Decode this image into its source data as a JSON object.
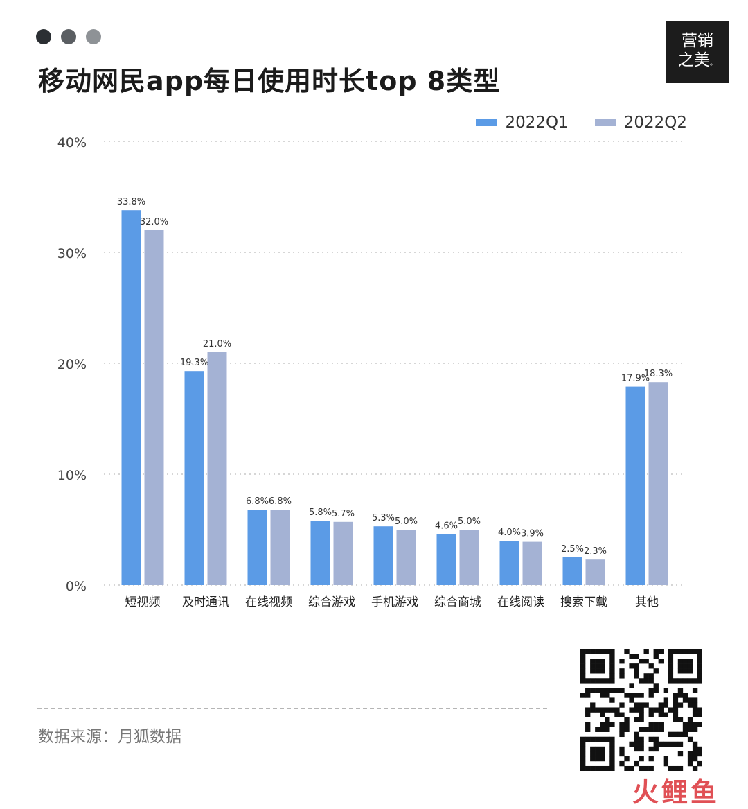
{
  "header": {
    "title": "移动网民app每日使用时长top 8类型",
    "window_dots": [
      "#2b2f33",
      "#5a5e62",
      "#8e9296"
    ]
  },
  "logo": {
    "line1": "营销",
    "line2": "之美",
    "mark": "。"
  },
  "legend": {
    "q1_label": "2022Q1",
    "q2_label": "2022Q2"
  },
  "colors": {
    "q1": "#5b9be6",
    "q2": "#a4b2d4",
    "grid": "#c8c8c8",
    "text": "#333333"
  },
  "chart_data": {
    "type": "bar",
    "categories": [
      "短视频",
      "及时通讯",
      "在线视频",
      "综合游戏",
      "手机游戏",
      "综合商城",
      "在线阅读",
      "搜索下载",
      "其他"
    ],
    "series": [
      {
        "name": "2022Q1",
        "values": [
          33.8,
          19.3,
          6.8,
          5.8,
          5.3,
          4.6,
          4.0,
          2.5,
          17.9
        ]
      },
      {
        "name": "2022Q2",
        "values": [
          32.0,
          21.0,
          6.8,
          5.7,
          5.0,
          5.0,
          3.9,
          2.3,
          18.3
        ]
      }
    ],
    "value_labels_q1": [
      "33.8%",
      "19.3%",
      "6.8%",
      "5.8%",
      "5.3%",
      "4.6%",
      "4.0%",
      "2.5%",
      "17.9%"
    ],
    "value_labels_q2": [
      "32.0%",
      "21.0%",
      "6.8%",
      "5.7%",
      "5.0%",
      "5.0%",
      "3.9%",
      "2.3%",
      "18.3%"
    ],
    "yticks": [
      0,
      10,
      20,
      30,
      40
    ],
    "ytick_labels": [
      "0%",
      "10%",
      "20%",
      "30%",
      "40%"
    ],
    "ylim": [
      0,
      40
    ],
    "grid": true,
    "legend_position": "top-right",
    "title": "",
    "xlabel": "",
    "ylabel": ""
  },
  "footer": {
    "source": "数据来源：月狐数据",
    "qr_icon": "qr-code-icon",
    "watermark": "火鲤鱼"
  }
}
